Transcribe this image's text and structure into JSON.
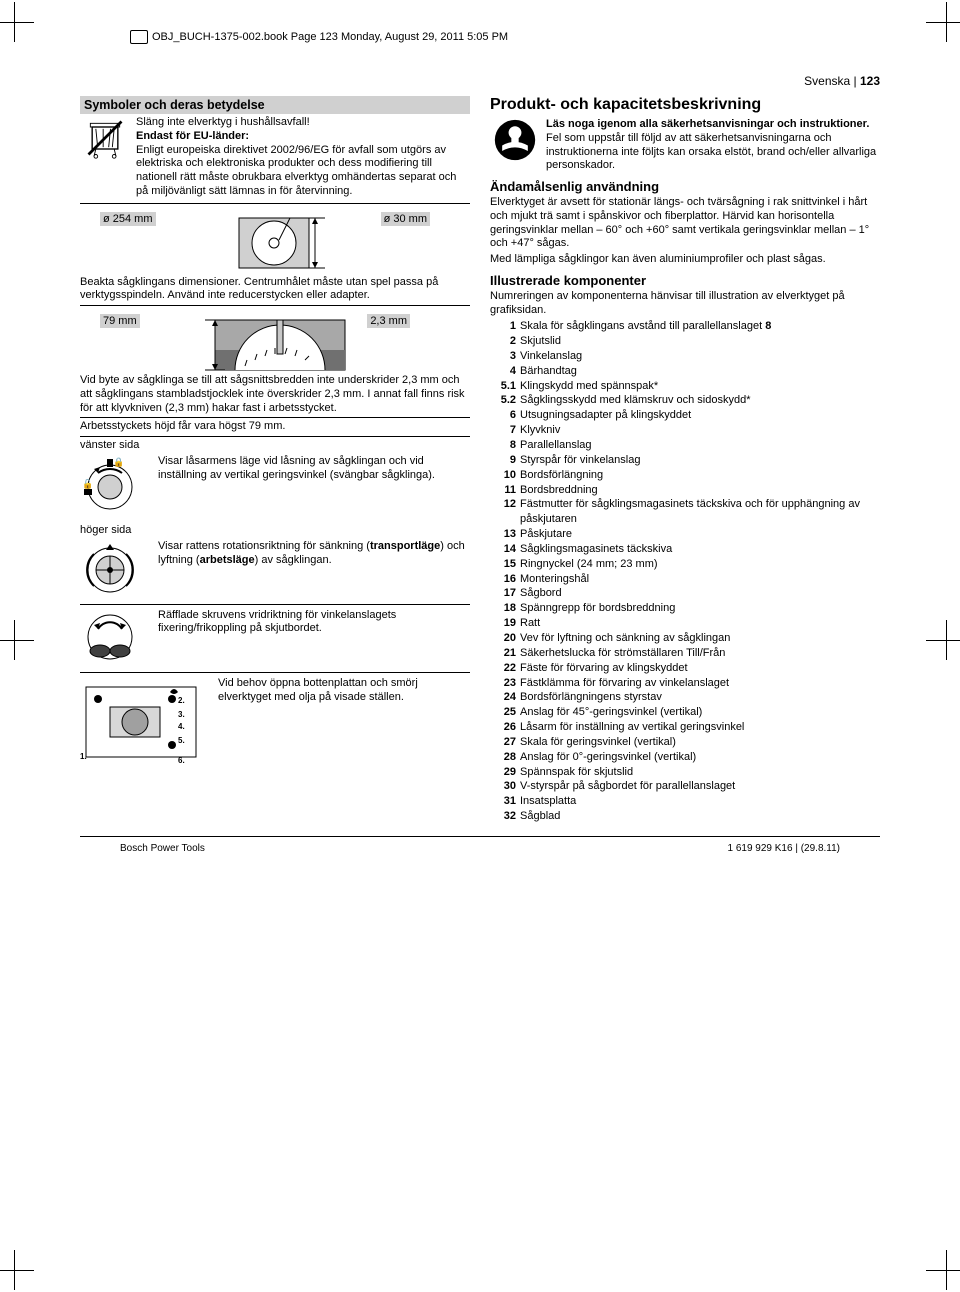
{
  "topline": "OBJ_BUCH-1375-002.book  Page 123  Monday, August 29, 2011  5:05 PM",
  "lang_page_lang": "Svenska",
  "lang_page_num": "123",
  "left": {
    "section_title": "Symboler och deras betydelse",
    "trash_line1": "Släng inte elverktyg i hushållsavfall!",
    "eu_title": "Endast för EU-länder:",
    "eu_text": "Enligt europeiska direktivet 2002/96/EG för avfall som utgörs av elektriska och elektroniska produkter och dess modifiering till nationell rätt måste obrukbara elverktyg omhändertas separat och på miljövänligt sätt lämnas in för återvinning.",
    "d254": "ø 254 mm",
    "d30": "ø 30 mm",
    "blade_note": "Beakta sågklingans dimensioner. Centrumhålet måste utan spel passa på verktygsspindeln. Använd inte reducerstycken eller adapter.",
    "d23": "2,3 mm",
    "d79": "79 mm",
    "kerf_note": "Vid byte av sågklinga se till att sågsnittsbredden inte underskrider 2,3 mm och att sågklingans stambladstjocklek inte överskrider 2,3 mm. I annat fall finns risk för att klyvkniven (2,3 mm) hakar fast i arbetsstycket.",
    "height_note": "Arbetsstyckets höjd får vara högst 79 mm.",
    "left_side": "vänster sida",
    "right_side": "höger sida",
    "lock_note": "Visar låsarmens läge vid låsning av sågklingan och vid inställning av vertikal geringsvinkel (svängbar sågklinga).",
    "wheel_note": "Visar rattens rotationsriktning för sänkning (transportläge) och lyftning (arbetsläge) av sågklingan.",
    "wheel_note_pre": "Visar rattens rotationsriktning för sänkning (",
    "wheel_note_trans": "transportläge",
    "wheel_note_mid": ") och lyftning (",
    "wheel_note_arbet": "arbetsläge",
    "wheel_note_post": ") av sågklingan.",
    "screw_note": "Räfflade skruvens vridriktning för vinkelanslagets fixering/frikoppling på skjutbordet.",
    "oil_note": "Vid behov öppna bottenplattan och smörj elverktyget med olja på visade ställen."
  },
  "right": {
    "h1": "Produkt- och kapacitetsbeskrivning",
    "read_bold": "Läs noga igenom alla säkerhetsanvisningar och instruktioner.",
    "read_rest": " Fel som uppstår till följd av att säkerhetsanvisningarna och instruktionerna inte följts kan orsaka elstöt, brand och/eller allvarliga personskador.",
    "usage_h": "Ändamålsenlig användning",
    "usage_p1": "Elverktyget är avsett för stationär längs- och tvärsågning i rak snittvinkel i hårt och mjukt trä samt i spånskivor och fiberplattor. Härvid kan horisontella geringsvinklar mellan – 60° och +60° samt vertikala geringsvinklar mellan – 1° och +47° sågas.",
    "usage_p2": "Med lämpliga sågklingor kan även aluminiumprofiler och plast sågas.",
    "comp_h": "Illustrerade komponenter",
    "comp_intro": "Numreringen av komponenterna hänvisar till illustration av elverktyget på grafiksidan.",
    "components": [
      {
        "n": "1",
        "t": "Skala för sågklingans avstånd till parallellanslaget 8",
        "b8": true
      },
      {
        "n": "2",
        "t": "Skjutslid"
      },
      {
        "n": "3",
        "t": "Vinkelanslag"
      },
      {
        "n": "4",
        "t": "Bärhandtag"
      },
      {
        "n": "5.1",
        "t": "Klingskydd med spännspak*"
      },
      {
        "n": "5.2",
        "t": "Sågklingsskydd med klämskruv och sidoskydd*"
      },
      {
        "n": "6",
        "t": "Utsugningsadapter på klingskyddet"
      },
      {
        "n": "7",
        "t": "Klyvkniv"
      },
      {
        "n": "8",
        "t": "Parallellanslag"
      },
      {
        "n": "9",
        "t": "Styrspår för vinkelanslag"
      },
      {
        "n": "10",
        "t": "Bordsförlängning"
      },
      {
        "n": "11",
        "t": "Bordsbreddning"
      },
      {
        "n": "12",
        "t": "Fästmutter för sågklingsmagasinets täckskiva och för upphängning av påskjutaren"
      },
      {
        "n": "13",
        "t": "Påskjutare"
      },
      {
        "n": "14",
        "t": "Sågklingsmagasinets täckskiva"
      },
      {
        "n": "15",
        "t": "Ringnyckel (24 mm; 23 mm)"
      },
      {
        "n": "16",
        "t": "Monteringshål"
      },
      {
        "n": "17",
        "t": "Sågbord"
      },
      {
        "n": "18",
        "t": "Spänngrepp för bordsbreddning"
      },
      {
        "n": "19",
        "t": "Ratt"
      },
      {
        "n": "20",
        "t": "Vev för lyftning och sänkning av sågklingan"
      },
      {
        "n": "21",
        "t": "Säkerhetslucka för strömställaren Till/Från"
      },
      {
        "n": "22",
        "t": "Fäste för förvaring av klingskyddet"
      },
      {
        "n": "23",
        "t": "Fästklämma för förvaring av vinkelanslaget"
      },
      {
        "n": "24",
        "t": "Bordsförlängningens styrstav"
      },
      {
        "n": "25",
        "t": "Anslag för 45°-geringsvinkel (vertikal)"
      },
      {
        "n": "26",
        "t": "Låsarm för inställning av vertikal geringsvinkel"
      },
      {
        "n": "27",
        "t": "Skala för geringsvinkel (vertikal)"
      },
      {
        "n": "28",
        "t": "Anslag för 0°-geringsvinkel (vertikal)"
      },
      {
        "n": "29",
        "t": "Spännspak för skjutslid"
      },
      {
        "n": "30",
        "t": "V-styrspår på sågbordet för parallellanslaget"
      },
      {
        "n": "31",
        "t": "Insatsplatta"
      },
      {
        "n": "32",
        "t": "Sågblad"
      }
    ]
  },
  "footer_left": "Bosch Power Tools",
  "footer_right": "1 619 929 K16 | (29.8.11)"
}
